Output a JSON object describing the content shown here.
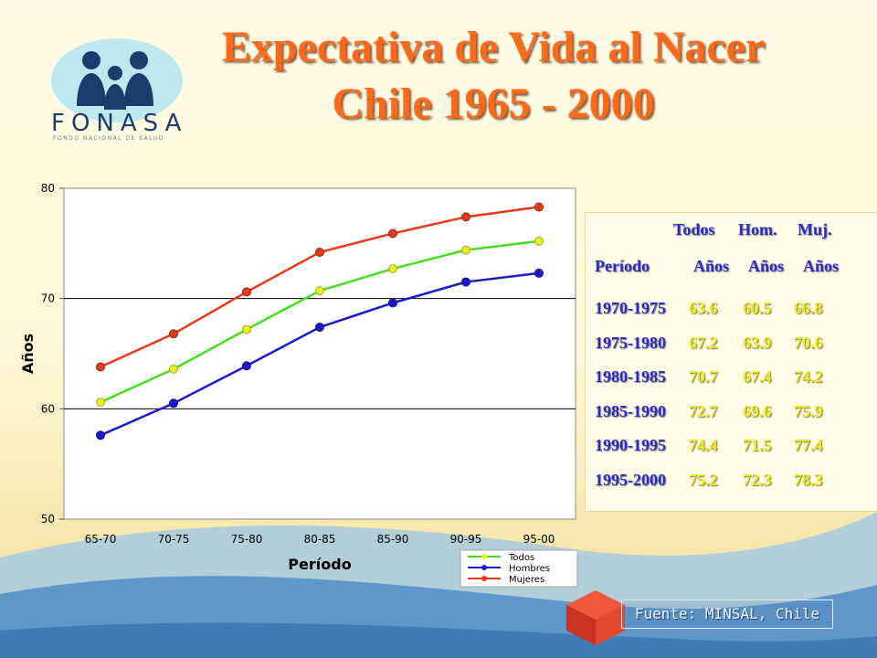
{
  "title_line1": "Expectativa de Vida al Nacer",
  "title_line2": "Chile 1965 - 2000",
  "logo": {
    "name": "FONASA",
    "subtitle": "FONDO NACIONAL DE SALUD"
  },
  "colors": {
    "todos": "#44dd22",
    "todos_marker": "#e8f020",
    "hombres": "#1a1acc",
    "mujeres": "#e83818",
    "title": "#ff6a1a"
  },
  "chart_data": {
    "type": "line",
    "xlabel": "Período",
    "ylabel": "Años",
    "ylim": [
      50,
      80
    ],
    "yticks": [
      50,
      60,
      70,
      80
    ],
    "grid": "horizontal at 60, 70, 80",
    "legend_position": "bottom-right",
    "categories": [
      "65-70",
      "70-75",
      "75-80",
      "80-85",
      "85-90",
      "90-95",
      "95-00"
    ],
    "series": [
      {
        "name": "Todos",
        "values": [
          60.6,
          63.6,
          67.2,
          70.7,
          72.7,
          74.4,
          75.2
        ]
      },
      {
        "name": "Hombres",
        "values": [
          57.6,
          60.5,
          63.9,
          67.4,
          69.6,
          71.5,
          72.3
        ]
      },
      {
        "name": "Mujeres",
        "values": [
          63.8,
          66.8,
          70.6,
          74.2,
          75.9,
          77.4,
          78.3
        ]
      }
    ]
  },
  "table": {
    "headers": [
      "Todos",
      "Hom.",
      "Muj."
    ],
    "period_label": "Período",
    "unit_labels": [
      "Años",
      "Años",
      "Años"
    ],
    "rows": [
      {
        "period": "1970-1975",
        "todos": "63.6",
        "hom": "60.5",
        "muj": "66.8"
      },
      {
        "period": "1975-1980",
        "todos": "67.2",
        "hom": "63.9",
        "muj": "70.6"
      },
      {
        "period": "1980-1985",
        "todos": "70.7",
        "hom": "67.4",
        "muj": "74.2"
      },
      {
        "period": "1985-1990",
        "todos": "72.7",
        "hom": "69.6",
        "muj": "75.9"
      },
      {
        "period": "1990-1995",
        "todos": "74.4",
        "hom": "71.5",
        "muj": "77.4"
      },
      {
        "period": "1995-2000",
        "todos": "75.2",
        "hom": "72.3",
        "muj": "78.3"
      }
    ]
  },
  "source": "Fuente: MINSAL, Chile"
}
